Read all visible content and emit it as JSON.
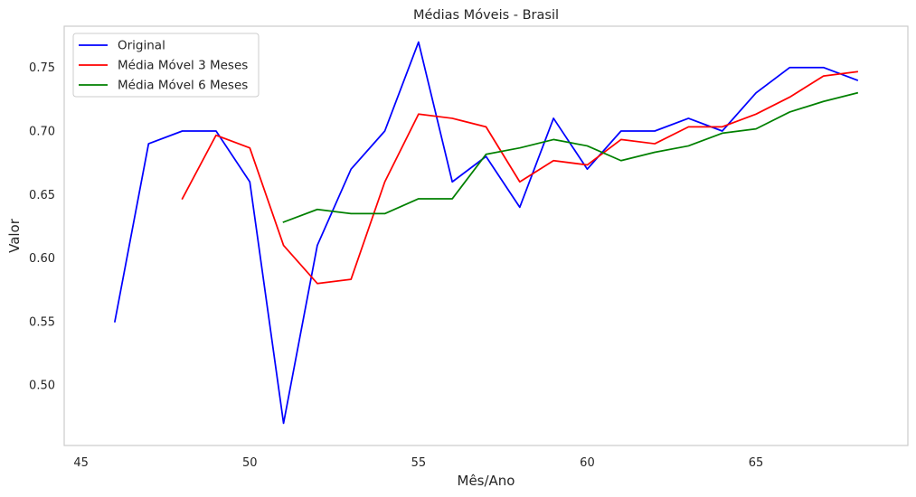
{
  "chart_data": {
    "type": "line",
    "title": "Médias Móveis - Brasil",
    "xlabel": "Mês/Ano",
    "ylabel": "Valor",
    "xlim": [
      44.5,
      69.5
    ],
    "ylim": [
      0.4525,
      0.7825
    ],
    "xticks": [
      45,
      50,
      55,
      60,
      65
    ],
    "yticks": [
      0.5,
      0.55,
      0.6,
      0.65,
      0.7,
      0.75
    ],
    "grid": false,
    "legend_position": "top-left",
    "x": [
      46,
      47,
      48,
      49,
      50,
      51,
      52,
      53,
      54,
      55,
      56,
      57,
      58,
      59,
      60,
      61,
      62,
      63,
      64,
      65,
      66,
      67,
      68
    ],
    "series": [
      {
        "name": "Original",
        "color": "#0000ff",
        "values": [
          0.55,
          0.69,
          0.7,
          0.7,
          0.66,
          0.47,
          0.61,
          0.67,
          0.7,
          0.77,
          0.66,
          0.68,
          0.64,
          0.71,
          0.67,
          0.7,
          0.7,
          0.71,
          0.7,
          0.73,
          0.75,
          0.75,
          0.74
        ]
      },
      {
        "name": "Média Móvel 3 Meses",
        "color": "#ff0000",
        "values": [
          null,
          null,
          0.6467,
          0.6967,
          0.6867,
          0.61,
          0.58,
          0.5833,
          0.66,
          0.7133,
          0.71,
          0.7033,
          0.66,
          0.6767,
          0.6733,
          0.6933,
          0.69,
          0.7033,
          0.7033,
          0.7133,
          0.7267,
          0.7433,
          0.7467
        ]
      },
      {
        "name": "Média Móvel 6 Meses",
        "color": "#008000",
        "values": [
          null,
          null,
          null,
          null,
          null,
          0.6283,
          0.6383,
          0.635,
          0.635,
          0.6467,
          0.6467,
          0.6817,
          0.6867,
          0.6933,
          0.6883,
          0.6767,
          0.6833,
          0.6883,
          0.6983,
          0.7017,
          0.715,
          0.7233,
          0.73
        ]
      }
    ]
  }
}
